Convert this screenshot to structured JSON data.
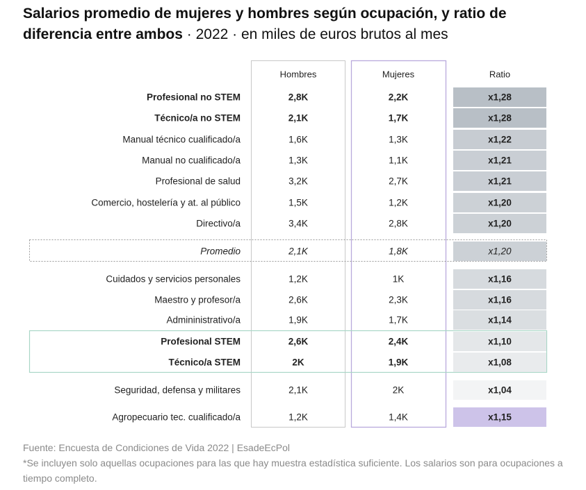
{
  "title": {
    "main": "Salarios promedio de mujeres y hombres según ocupación, y ratio de diferencia entre ambos",
    "sep1": " · ",
    "year": "2022",
    "sep2": " · ",
    "unit": "en miles de euros brutos al mes"
  },
  "chart_data": {
    "type": "table",
    "columns": [
      "Hombres",
      "Mujeres",
      "Ratio"
    ],
    "rows": [
      {
        "label": "Profesional no STEM",
        "hombres": "2,8K",
        "mujeres": "2,2K",
        "ratio_label": "x1,28",
        "ratio": 1.28,
        "bold": true,
        "italic": false,
        "group": "above"
      },
      {
        "label": "Técnico/a no STEM",
        "hombres": "2,1K",
        "mujeres": "1,7K",
        "ratio_label": "x1,28",
        "ratio": 1.28,
        "bold": true,
        "italic": false,
        "group": "above"
      },
      {
        "label": "Manual técnico cualificado/a",
        "hombres": "1,6K",
        "mujeres": "1,3K",
        "ratio_label": "x1,22",
        "ratio": 1.22,
        "bold": false,
        "italic": false,
        "group": "above"
      },
      {
        "label": "Manual no cualificado/a",
        "hombres": "1,3K",
        "mujeres": "1,1K",
        "ratio_label": "x1,21",
        "ratio": 1.21,
        "bold": false,
        "italic": false,
        "group": "above"
      },
      {
        "label": "Profesional de salud",
        "hombres": "3,2K",
        "mujeres": "2,7K",
        "ratio_label": "x1,21",
        "ratio": 1.21,
        "bold": false,
        "italic": false,
        "group": "above"
      },
      {
        "label": "Comercio, hostelería y at. al público",
        "hombres": "1,5K",
        "mujeres": "1,2K",
        "ratio_label": "x1,20",
        "ratio": 1.2,
        "bold": false,
        "italic": false,
        "group": "above"
      },
      {
        "label": "Directivo/a",
        "hombres": "3,4K",
        "mujeres": "2,8K",
        "ratio_label": "x1,20",
        "ratio": 1.2,
        "bold": false,
        "italic": false,
        "group": "above"
      },
      {
        "label": "Promedio",
        "hombres": "2,1K",
        "mujeres": "1,8K",
        "ratio_label": "x1,20",
        "ratio": 1.2,
        "bold": false,
        "italic": true,
        "group": "average"
      },
      {
        "label": "Cuidados y servicios personales",
        "hombres": "1,2K",
        "mujeres": "1K",
        "ratio_label": "x1,16",
        "ratio": 1.16,
        "bold": false,
        "italic": false,
        "group": "below"
      },
      {
        "label": "Maestro y profesor/a",
        "hombres": "2,6K",
        "mujeres": "2,3K",
        "ratio_label": "x1,16",
        "ratio": 1.16,
        "bold": false,
        "italic": false,
        "group": "below"
      },
      {
        "label": "Admininistrativo/a",
        "hombres": "1,9K",
        "mujeres": "1,7K",
        "ratio_label": "x1,14",
        "ratio": 1.14,
        "bold": false,
        "italic": false,
        "group": "below"
      },
      {
        "label": "Profesional STEM",
        "hombres": "2,6K",
        "mujeres": "2,4K",
        "ratio_label": "x1,10",
        "ratio": 1.1,
        "bold": true,
        "italic": false,
        "group": "stem"
      },
      {
        "label": "Técnico/a STEM",
        "hombres": "2K",
        "mujeres": "1,9K",
        "ratio_label": "x1,08",
        "ratio": 1.08,
        "bold": true,
        "italic": false,
        "group": "stem"
      },
      {
        "label": "Seguridad, defensa y militares",
        "hombres": "2,1K",
        "mujeres": "2K",
        "ratio_label": "x1,04",
        "ratio": 1.04,
        "bold": false,
        "italic": false,
        "group": "below"
      },
      {
        "label": "Agropecuario tec. cualificado/a",
        "hombres": "1,2K",
        "mujeres": "1,4K",
        "ratio_label": "x1,15",
        "ratio": 1.15,
        "bold": false,
        "italic": false,
        "group": "women-higher"
      }
    ],
    "colors": {
      "ratio_dark": "#b8bfc6",
      "ratio_light": "#f3f4f5",
      "ratio_women_higher": "#cdc3e9",
      "hombres_border": "#c8c8c8",
      "mujeres_border": "#b9a9dc",
      "stem_border": "#a9d6c6",
      "average_border": "#9a9a9a"
    }
  },
  "footer": {
    "source": "Fuente: Encuesta de Condiciones de Vida 2022 | EsadeEcPol",
    "note": "*Se incluyen solo aquellas ocupaciones para las que hay muestra estadística suficiente. Los salarios son para ocupaciones a tiempo completo."
  }
}
